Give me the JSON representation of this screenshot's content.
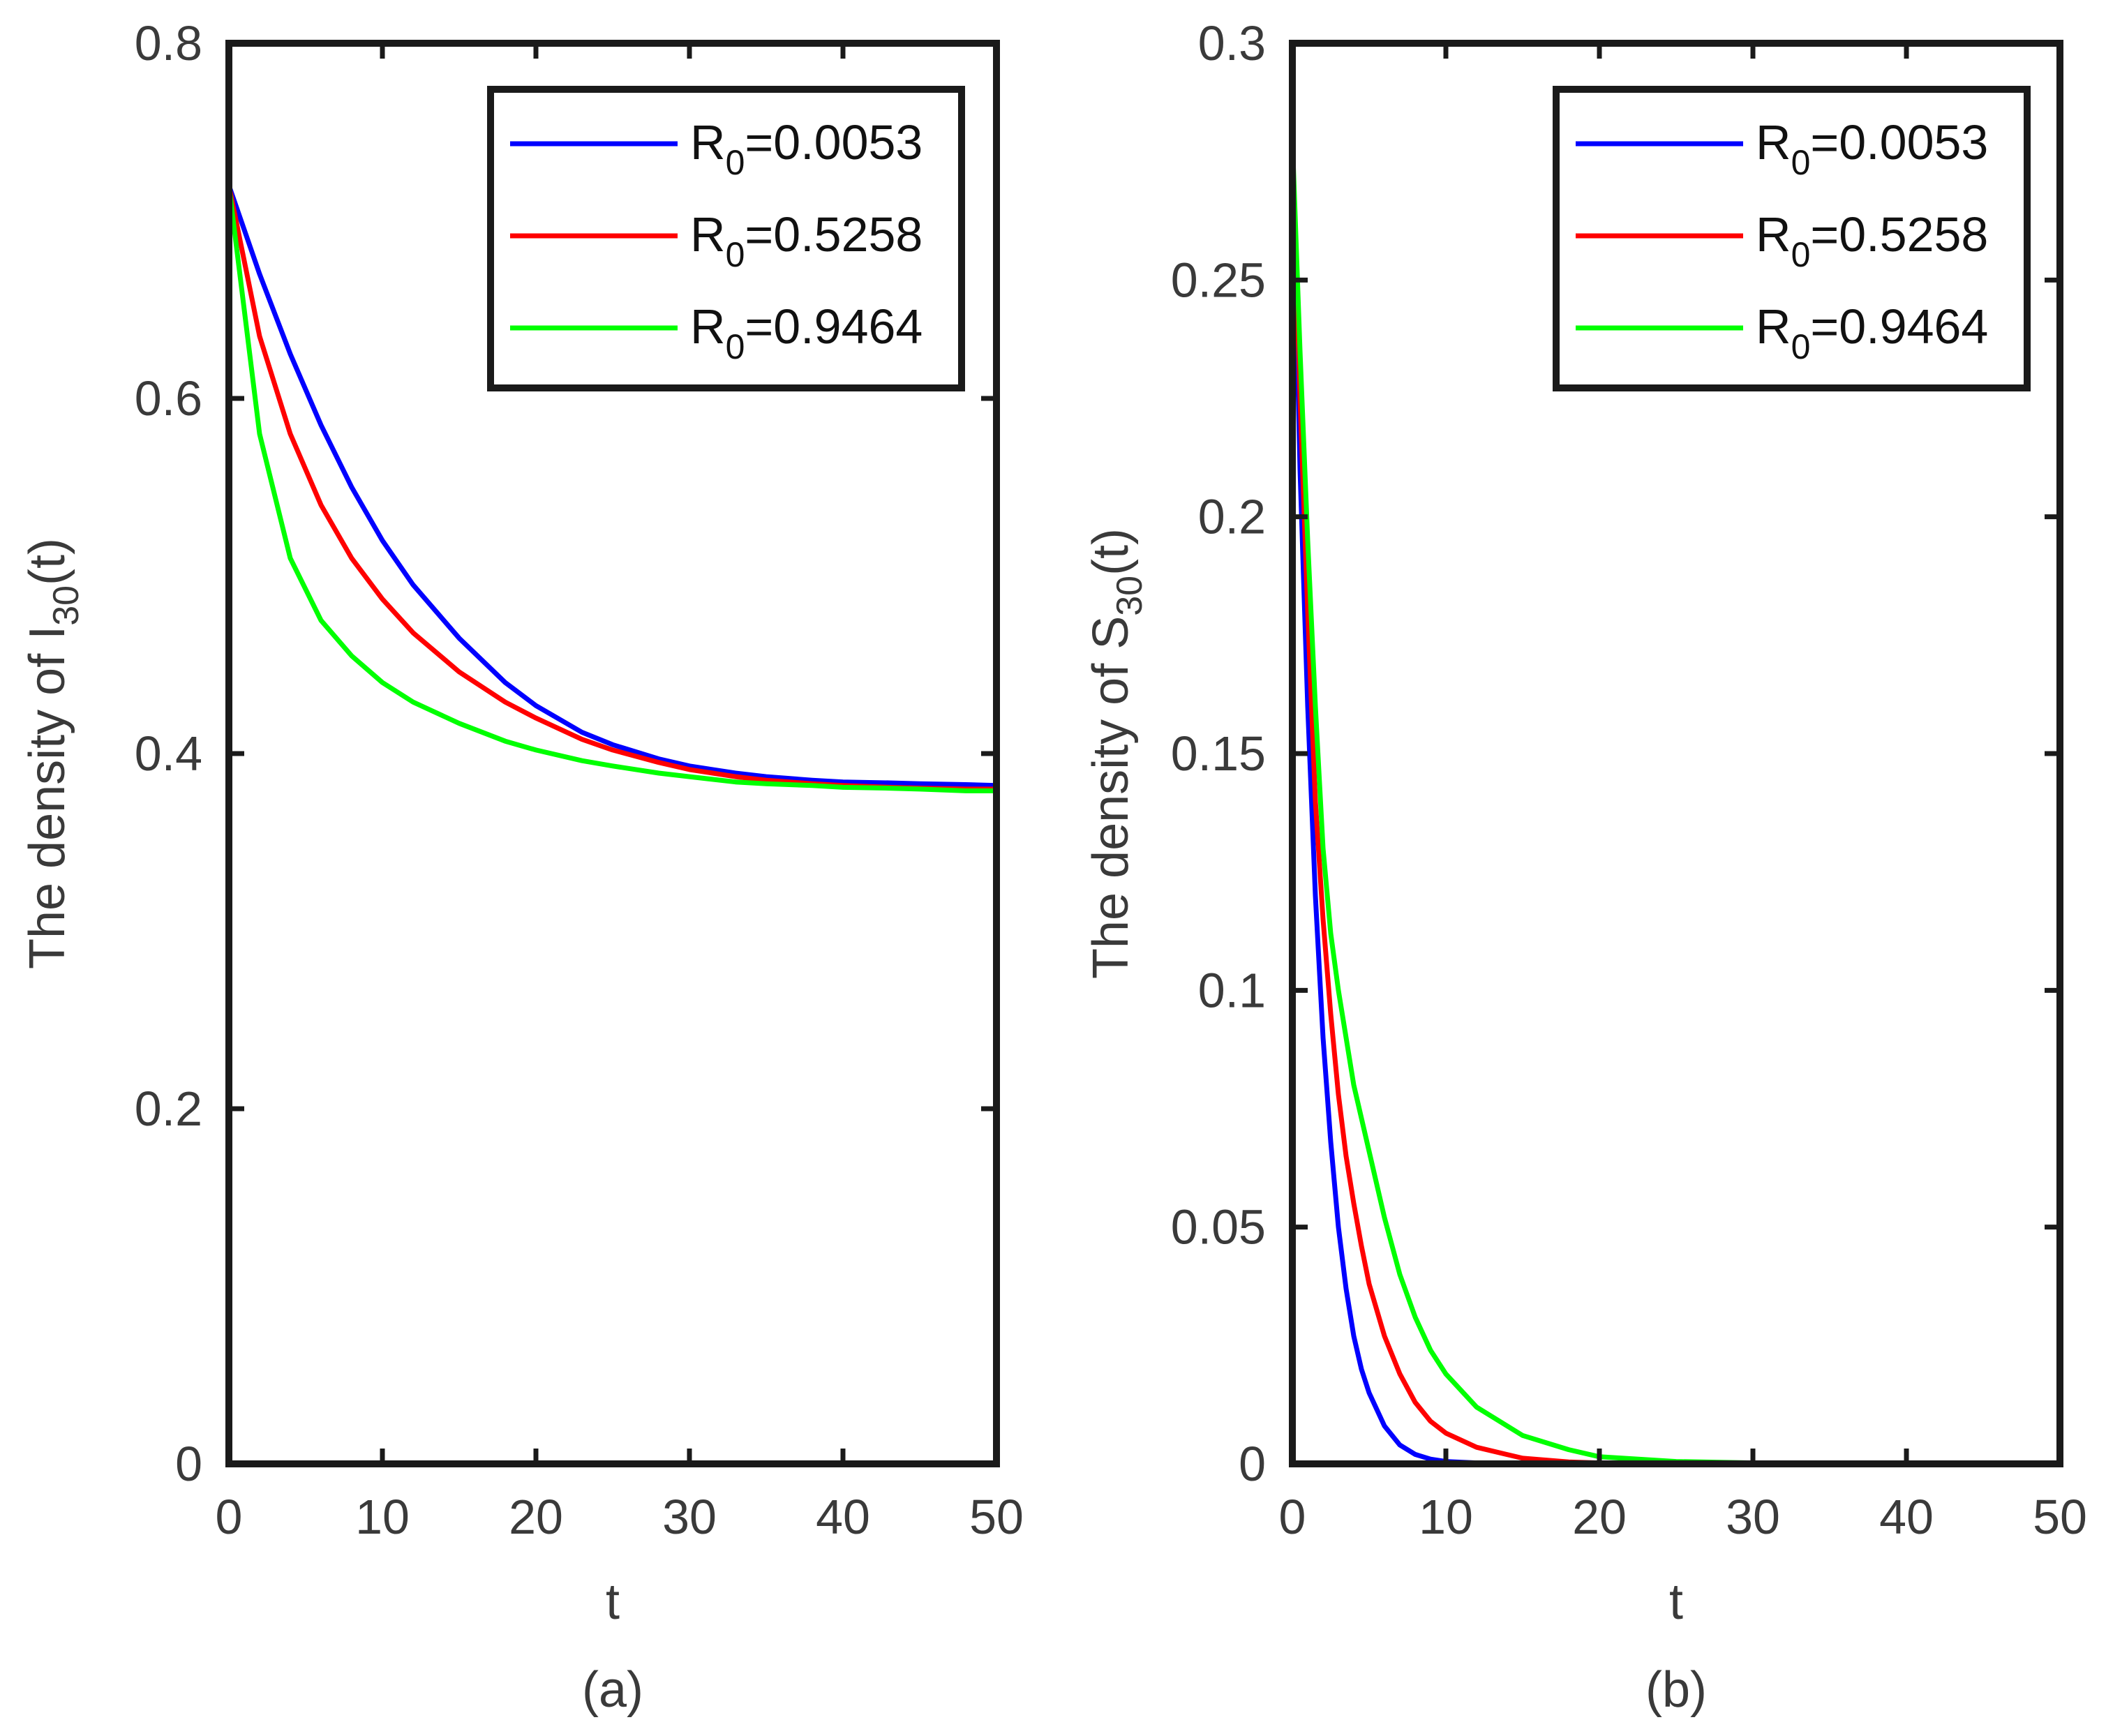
{
  "chart_data": [
    {
      "type": "line",
      "panel_label": "(a)",
      "xlabel": "t",
      "ylabel": {
        "prefix": "The density of I",
        "subscript": "30",
        "suffix": "(t)"
      },
      "xlim": [
        0,
        50
      ],
      "ylim": [
        0,
        0.8
      ],
      "xticks": [
        0,
        10,
        20,
        30,
        40,
        50
      ],
      "xtick_labels": [
        "0",
        "10",
        "20",
        "30",
        "40",
        "50"
      ],
      "yticks": [
        0,
        0.2,
        0.4,
        0.6,
        0.8
      ],
      "ytick_labels": [
        "0",
        "0.2",
        "0.4",
        "0.6",
        "0.8"
      ],
      "legend_position": "top-right",
      "x": [
        0,
        2,
        4,
        6,
        8,
        10,
        12,
        15,
        18,
        20,
        23,
        25,
        28,
        30,
        33,
        35,
        38,
        40,
        43,
        45,
        48,
        50
      ],
      "series": [
        {
          "name": "R0=0.0053",
          "legend_base": "R",
          "legend_sub": "0",
          "legend_value": "=0.0053",
          "color": "#0000ff",
          "values": [
            0.72,
            0.67,
            0.625,
            0.585,
            0.55,
            0.52,
            0.495,
            0.465,
            0.44,
            0.427,
            0.412,
            0.405,
            0.397,
            0.393,
            0.389,
            0.387,
            0.385,
            0.384,
            0.3835,
            0.383,
            0.3825,
            0.382
          ]
        },
        {
          "name": "R0=0.5258",
          "legend_base": "R",
          "legend_sub": "0",
          "legend_value": "=0.5258",
          "color": "#ff0000",
          "values": [
            0.72,
            0.635,
            0.58,
            0.54,
            0.51,
            0.487,
            0.468,
            0.446,
            0.429,
            0.42,
            0.408,
            0.402,
            0.395,
            0.391,
            0.387,
            0.385,
            0.383,
            0.382,
            0.381,
            0.3805,
            0.38,
            0.38
          ]
        },
        {
          "name": "R0=0.9464",
          "legend_base": "R",
          "legend_sub": "0",
          "legend_value": "=0.9464",
          "color": "#00ff00",
          "values": [
            0.72,
            0.58,
            0.51,
            0.475,
            0.455,
            0.44,
            0.429,
            0.417,
            0.407,
            0.402,
            0.396,
            0.393,
            0.389,
            0.387,
            0.384,
            0.383,
            0.382,
            0.381,
            0.3805,
            0.38,
            0.379,
            0.379
          ]
        }
      ]
    },
    {
      "type": "line",
      "panel_label": "(b)",
      "xlabel": "t",
      "ylabel": {
        "prefix": "The density of S",
        "subscript": "30",
        "suffix": "(t)"
      },
      "xlim": [
        0,
        50
      ],
      "ylim": [
        0,
        0.3
      ],
      "xticks": [
        0,
        10,
        20,
        30,
        40,
        50
      ],
      "xtick_labels": [
        "0",
        "10",
        "20",
        "30",
        "40",
        "50"
      ],
      "yticks": [
        0,
        0.05,
        0.1,
        0.15,
        0.2,
        0.25,
        0.3
      ],
      "ytick_labels": [
        "0",
        "0.05",
        "0.1",
        "0.15",
        "0.2",
        "0.25",
        "0.3"
      ],
      "legend_position": "top-right",
      "x": [
        0,
        0.5,
        1,
        1.5,
        2,
        2.5,
        3,
        3.5,
        4,
        4.5,
        5,
        6,
        7,
        8,
        9,
        10,
        12,
        15,
        18,
        20,
        25,
        30,
        40,
        50
      ],
      "series": [
        {
          "name": "R0=0.0053",
          "legend_base": "R",
          "legend_sub": "0",
          "legend_value": "=0.0053",
          "color": "#0000ff",
          "values": [
            0.28,
            0.21,
            0.16,
            0.12,
            0.09,
            0.068,
            0.05,
            0.037,
            0.027,
            0.02,
            0.015,
            0.008,
            0.004,
            0.002,
            0.001,
            0.0005,
            0.0002,
            0,
            0,
            0,
            0,
            0,
            0,
            0
          ]
        },
        {
          "name": "R0=0.5258",
          "legend_base": "R",
          "legend_sub": "0",
          "legend_value": "=0.5258",
          "color": "#ff0000",
          "values": [
            0.28,
            0.225,
            0.18,
            0.14,
            0.115,
            0.095,
            0.078,
            0.065,
            0.055,
            0.046,
            0.038,
            0.027,
            0.019,
            0.013,
            0.009,
            0.0065,
            0.0035,
            0.0012,
            0.0004,
            0.0002,
            0,
            0,
            0,
            0
          ]
        },
        {
          "name": "R0=0.9464",
          "legend_base": "R",
          "legend_sub": "0",
          "legend_value": "=0.9464",
          "color": "#00ff00",
          "values": [
            0.28,
            0.235,
            0.195,
            0.16,
            0.13,
            0.112,
            0.1,
            0.09,
            0.08,
            0.073,
            0.066,
            0.052,
            0.04,
            0.031,
            0.024,
            0.019,
            0.012,
            0.006,
            0.003,
            0.0015,
            0.0005,
            0.0002,
            0,
            0
          ]
        }
      ]
    }
  ]
}
